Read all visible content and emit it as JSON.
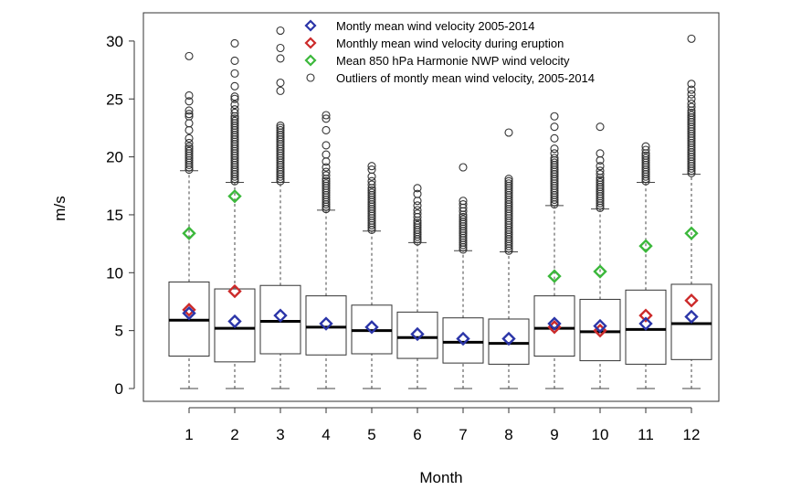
{
  "chart_data": {
    "type": "boxplot",
    "title": "",
    "xlabel": "Month",
    "ylabel": "m/s",
    "ylim": [
      0,
      32
    ],
    "yticks": [
      0,
      5,
      10,
      15,
      20,
      25,
      30
    ],
    "categories": [
      "1",
      "2",
      "3",
      "4",
      "5",
      "6",
      "7",
      "8",
      "9",
      "10",
      "11",
      "12"
    ],
    "boxes": [
      {
        "month": "1",
        "whisker_low": 0,
        "q1": 2.8,
        "median": 5.9,
        "q3": 9.2,
        "whisker_high": 18.8
      },
      {
        "month": "2",
        "whisker_low": 0,
        "q1": 2.3,
        "median": 5.2,
        "q3": 8.6,
        "whisker_high": 17.8
      },
      {
        "month": "3",
        "whisker_low": 0,
        "q1": 3.0,
        "median": 5.8,
        "q3": 8.9,
        "whisker_high": 17.8
      },
      {
        "month": "4",
        "whisker_low": 0,
        "q1": 2.9,
        "median": 5.3,
        "q3": 8.0,
        "whisker_high": 15.4
      },
      {
        "month": "5",
        "whisker_low": 0,
        "q1": 3.0,
        "median": 5.0,
        "q3": 7.2,
        "whisker_high": 13.6
      },
      {
        "month": "6",
        "whisker_low": 0,
        "q1": 2.6,
        "median": 4.4,
        "q3": 6.6,
        "whisker_high": 12.6
      },
      {
        "month": "7",
        "whisker_low": 0,
        "q1": 2.2,
        "median": 4.0,
        "q3": 6.1,
        "whisker_high": 11.9
      },
      {
        "month": "8",
        "whisker_low": 0,
        "q1": 2.1,
        "median": 3.9,
        "q3": 6.0,
        "whisker_high": 11.8
      },
      {
        "month": "9",
        "whisker_low": 0,
        "q1": 2.8,
        "median": 5.2,
        "q3": 8.0,
        "whisker_high": 15.8
      },
      {
        "month": "10",
        "whisker_low": 0,
        "q1": 2.4,
        "median": 4.9,
        "q3": 7.7,
        "whisker_high": 15.5
      },
      {
        "month": "11",
        "whisker_low": 0,
        "q1": 2.1,
        "median": 5.1,
        "q3": 8.5,
        "whisker_high": 17.8
      },
      {
        "month": "12",
        "whisker_low": 0,
        "q1": 2.5,
        "median": 5.6,
        "q3": 9.0,
        "whisker_high": 18.5
      }
    ],
    "outliers": [
      {
        "month": "1",
        "values": [
          18.9,
          19.1,
          19.3,
          19.5,
          19.7,
          19.9,
          20.1,
          20.3,
          20.5,
          20.7,
          20.9,
          21.2,
          21.6,
          22.3,
          22.9,
          23.5,
          23.7,
          24.0,
          24.8,
          25.3,
          28.7
        ]
      },
      {
        "month": "2",
        "values": [
          17.9,
          18.1,
          18.3,
          18.5,
          18.7,
          18.9,
          19.1,
          19.3,
          19.5,
          19.7,
          19.9,
          20.1,
          20.3,
          20.5,
          20.7,
          20.9,
          21.1,
          21.3,
          21.5,
          21.7,
          21.9,
          22.1,
          22.3,
          22.5,
          22.7,
          22.9,
          23.1,
          23.3,
          23.5,
          23.8,
          24.1,
          24.5,
          25.0,
          25.2,
          26.1,
          27.2,
          28.3,
          29.8
        ]
      },
      {
        "month": "3",
        "values": [
          17.9,
          18.1,
          18.3,
          18.5,
          18.7,
          18.9,
          19.1,
          19.3,
          19.5,
          19.7,
          19.9,
          20.1,
          20.3,
          20.5,
          20.7,
          20.9,
          21.1,
          21.3,
          21.5,
          21.7,
          21.9,
          22.1,
          22.3,
          22.5,
          22.7,
          25.7,
          26.4,
          28.5,
          29.4,
          30.9
        ]
      },
      {
        "month": "4",
        "values": [
          15.5,
          15.7,
          15.9,
          16.1,
          16.3,
          16.5,
          16.7,
          16.9,
          17.1,
          17.3,
          17.5,
          17.7,
          17.9,
          18.1,
          18.4,
          18.7,
          19.1,
          19.6,
          20.2,
          21.0,
          22.3,
          23.3,
          23.6
        ]
      },
      {
        "month": "5",
        "values": [
          13.7,
          13.9,
          14.1,
          14.3,
          14.5,
          14.7,
          14.9,
          15.1,
          15.3,
          15.5,
          15.7,
          15.9,
          16.1,
          16.3,
          16.5,
          16.7,
          16.9,
          17.1,
          17.3,
          17.6,
          17.9,
          18.3,
          18.9,
          19.2
        ]
      },
      {
        "month": "6",
        "values": [
          12.7,
          12.9,
          13.1,
          13.3,
          13.5,
          13.7,
          13.9,
          14.1,
          14.3,
          14.5,
          14.8,
          15.1,
          15.4,
          15.8,
          16.2,
          16.8,
          17.3
        ]
      },
      {
        "month": "7",
        "values": [
          12.0,
          12.2,
          12.4,
          12.6,
          12.8,
          13.0,
          13.2,
          13.4,
          13.6,
          13.8,
          14.0,
          14.2,
          14.4,
          14.6,
          14.8,
          15.0,
          15.3,
          15.6,
          15.9,
          16.2,
          19.1
        ]
      },
      {
        "month": "8",
        "values": [
          11.9,
          12.1,
          12.3,
          12.5,
          12.7,
          12.9,
          13.1,
          13.3,
          13.5,
          13.7,
          13.9,
          14.1,
          14.3,
          14.5,
          14.7,
          14.9,
          15.1,
          15.3,
          15.5,
          15.7,
          15.9,
          16.1,
          16.3,
          16.5,
          16.7,
          16.9,
          17.1,
          17.3,
          17.5,
          17.7,
          17.9,
          18.1,
          22.1
        ]
      },
      {
        "month": "9",
        "values": [
          15.9,
          16.1,
          16.3,
          16.5,
          16.7,
          16.9,
          17.1,
          17.3,
          17.5,
          17.7,
          17.9,
          18.1,
          18.3,
          18.5,
          18.7,
          18.9,
          19.1,
          19.3,
          19.5,
          19.7,
          19.9,
          20.3,
          20.7,
          21.6,
          22.6,
          23.5
        ]
      },
      {
        "month": "10",
        "values": [
          15.6,
          15.8,
          16.0,
          16.2,
          16.4,
          16.6,
          16.8,
          17.0,
          17.2,
          17.4,
          17.6,
          17.8,
          18.0,
          18.2,
          18.5,
          18.8,
          19.2,
          19.7,
          20.3,
          22.6
        ]
      },
      {
        "month": "11",
        "values": [
          17.9,
          18.1,
          18.3,
          18.5,
          18.7,
          18.9,
          19.1,
          19.3,
          19.5,
          19.7,
          19.9,
          20.1,
          20.3,
          20.6,
          20.9
        ]
      },
      {
        "month": "12",
        "values": [
          18.6,
          18.8,
          19.0,
          19.2,
          19.4,
          19.6,
          19.8,
          20.0,
          20.2,
          20.4,
          20.6,
          20.8,
          21.0,
          21.2,
          21.4,
          21.6,
          21.8,
          22.0,
          22.2,
          22.4,
          22.6,
          22.8,
          23.0,
          23.2,
          23.4,
          23.6,
          23.8,
          24.0,
          24.3,
          24.6,
          25.0,
          25.4,
          25.8,
          26.3,
          30.2
        ]
      }
    ],
    "series": [
      {
        "name": "Montly mean wind velocity 2005-2014",
        "color": "#2b35a8",
        "marker": "diamond",
        "values": [
          6.5,
          5.8,
          6.3,
          5.6,
          5.3,
          4.7,
          4.3,
          4.3,
          5.6,
          5.4,
          5.6,
          6.2
        ]
      },
      {
        "name": "Monthly mean wind velocity during eruption",
        "color": "#cc2a2a",
        "marker": "diamond",
        "values": [
          6.8,
          8.4,
          null,
          null,
          null,
          null,
          null,
          null,
          5.3,
          5.0,
          6.3,
          7.6
        ]
      },
      {
        "name": "Mean 850 hPa Harmonie NWP wind velocity",
        "color": "#3cb83c",
        "marker": "diamond",
        "values": [
          13.4,
          16.6,
          null,
          null,
          null,
          null,
          null,
          null,
          9.7,
          10.1,
          12.3,
          13.4
        ]
      },
      {
        "name": "Outliers of montly mean wind velocity, 2005-2014",
        "color": "#333333",
        "marker": "circle"
      }
    ],
    "legend_position": "top-center"
  }
}
